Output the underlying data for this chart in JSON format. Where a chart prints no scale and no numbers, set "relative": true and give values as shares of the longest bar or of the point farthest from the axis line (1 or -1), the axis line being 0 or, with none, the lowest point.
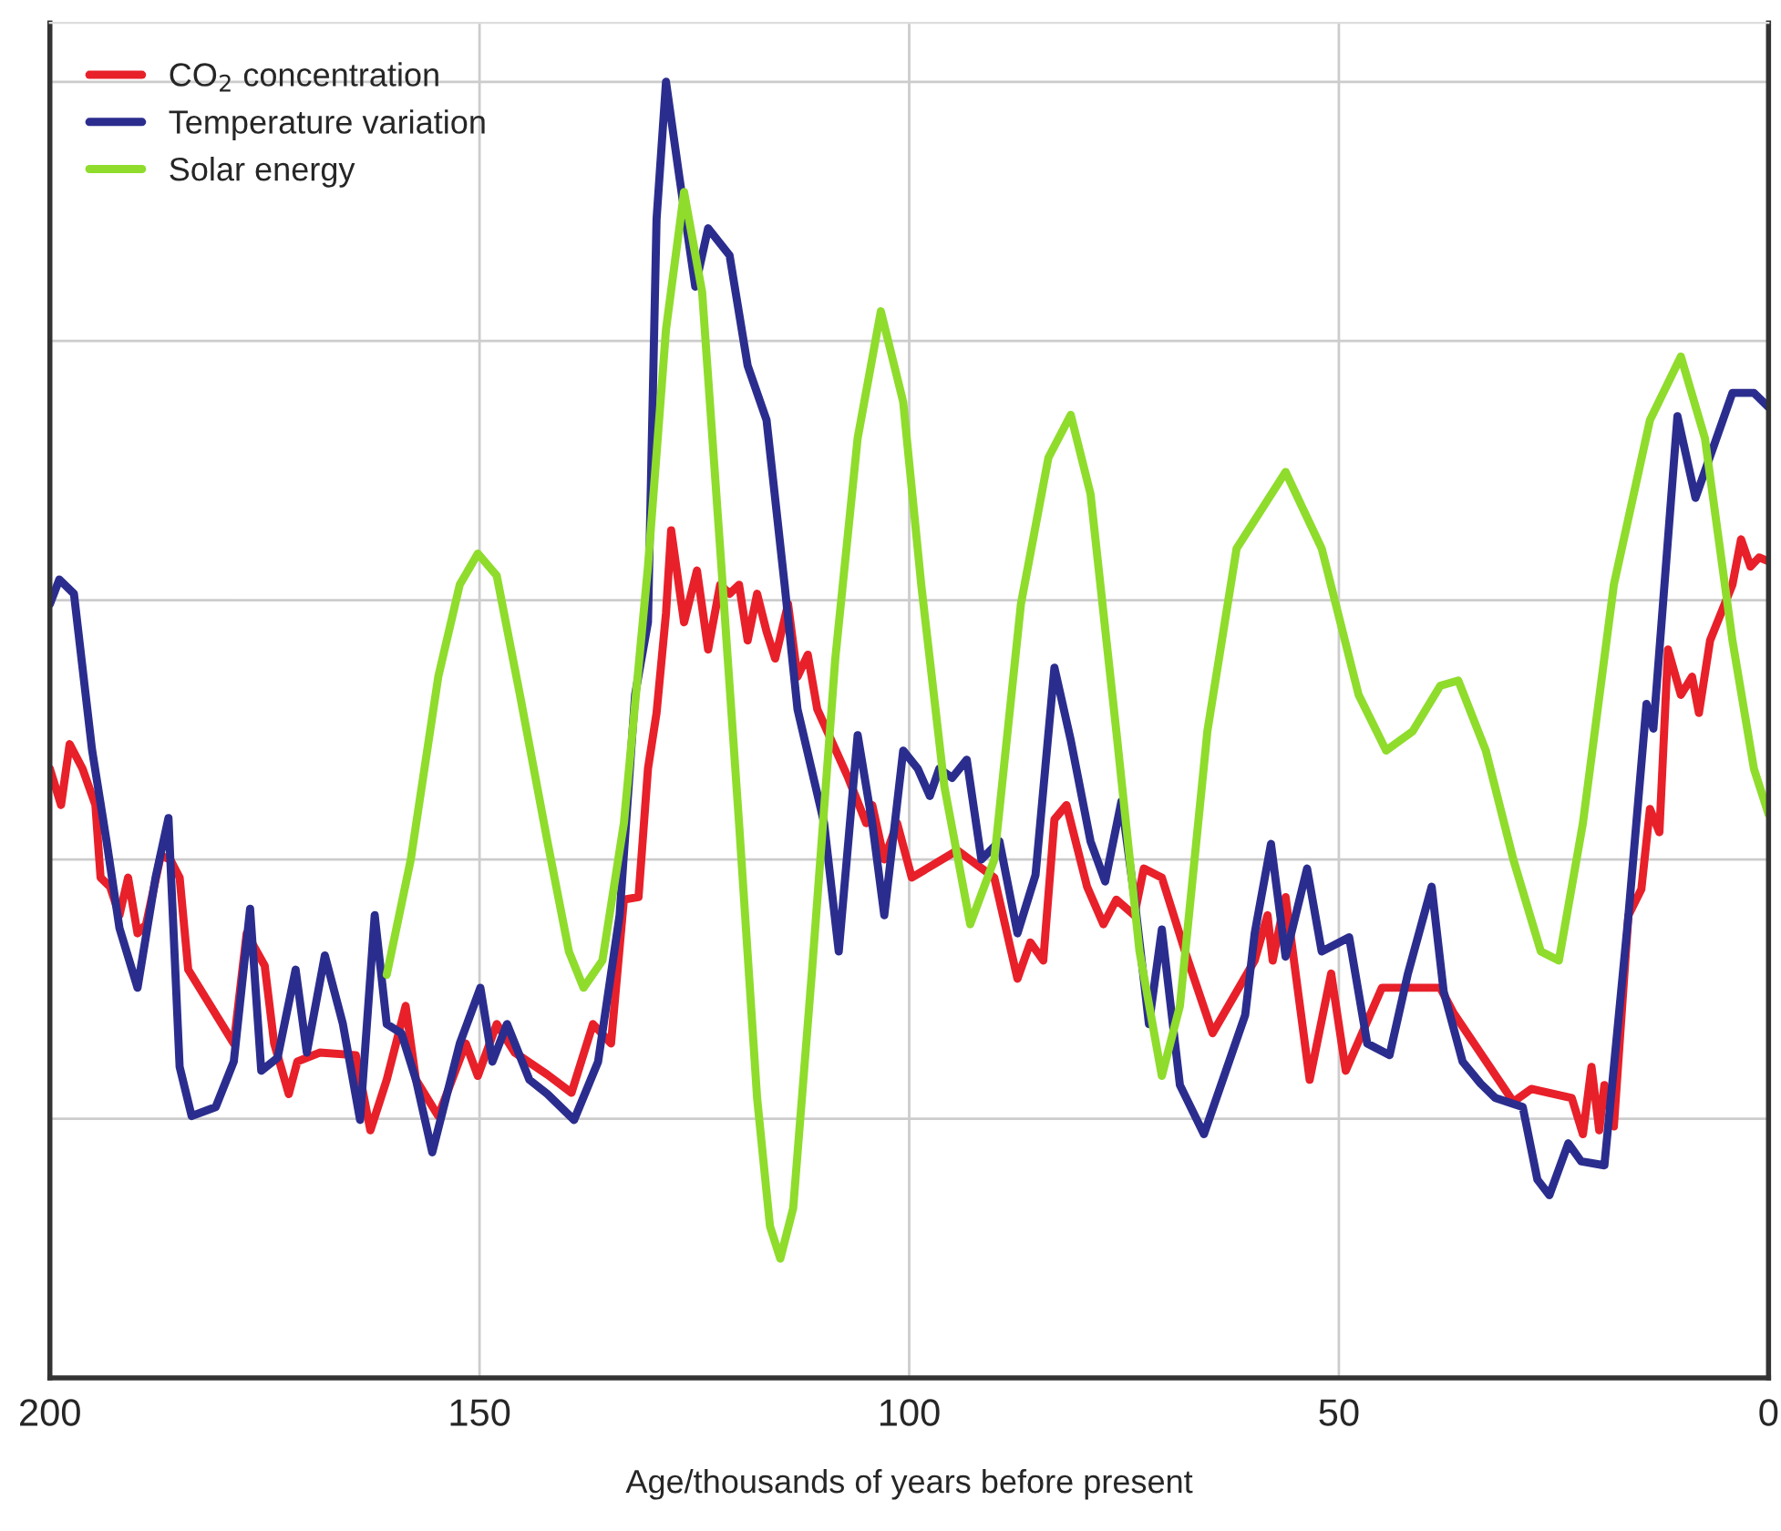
{
  "chart_data": {
    "type": "line",
    "relative": true,
    "xlabel": "Age/thousands of years before present",
    "xlim": [
      200,
      0
    ],
    "xticks": [
      200,
      150,
      100,
      50,
      0
    ],
    "grid": true,
    "legend": "top left",
    "line_style": "solid",
    "marker": "none",
    "series": [
      {
        "name": "CO$_{2}$ concentration",
        "color": "#e8202a",
        "x": [
          200,
          198.7,
          197.7,
          196.2,
          194.7,
          194.1,
          193.0,
          191.9,
          190.9,
          189.8,
          188.8,
          187.1,
          186.0,
          184.9,
          183.9,
          178.6,
          177.1,
          175.0,
          173.9,
          172.2,
          171.2,
          168.6,
          164.4,
          162.7,
          160.8,
          158.6,
          157.4,
          154.8,
          151.6,
          150.2,
          148.0,
          145.9,
          142.1,
          139.3,
          136.8,
          134.7,
          133.2,
          131.5,
          130.4,
          129.4,
          128.3,
          127.7,
          126.2,
          124.7,
          123.4,
          122.0,
          120.9,
          119.8,
          118.8,
          117.7,
          116.6,
          115.6,
          114.1,
          113.0,
          111.8,
          110.7,
          107.1,
          105.0,
          104.3,
          102.9,
          101.4,
          99.7,
          94.4,
          90.1,
          87.4,
          85.9,
          84.4,
          83.1,
          81.7,
          79.3,
          77.4,
          75.9,
          73.8,
          72.7,
          70.6,
          67.9,
          64.7,
          59.8,
          58.3,
          57.7,
          56.2,
          53.4,
          50.9,
          49.2,
          45.0,
          38.2,
          36.7,
          29.7,
          27.6,
          22.9,
          21.6,
          20.6,
          19.7,
          19.1,
          18.0,
          16.3,
          14.8,
          13.8,
          12.7,
          11.7,
          10.2,
          8.9,
          8.1,
          6.8,
          4.2,
          3.2,
          2.1,
          1.1,
          0
        ],
        "values": [
          0.47,
          0.442,
          0.489,
          0.47,
          0.442,
          0.386,
          0.379,
          0.357,
          0.386,
          0.343,
          0.35,
          0.403,
          0.4,
          0.386,
          0.315,
          0.258,
          0.343,
          0.318,
          0.258,
          0.219,
          0.244,
          0.251,
          0.249,
          0.191,
          0.23,
          0.287,
          0.23,
          0.202,
          0.258,
          0.233,
          0.273,
          0.251,
          0.234,
          0.22,
          0.273,
          0.258,
          0.369,
          0.371,
          0.47,
          0.513,
          0.59,
          0.654,
          0.583,
          0.623,
          0.562,
          0.612,
          0.605,
          0.612,
          0.569,
          0.605,
          0.576,
          0.555,
          0.597,
          0.541,
          0.558,
          0.516,
          0.463,
          0.428,
          0.442,
          0.4,
          0.428,
          0.386,
          0.407,
          0.386,
          0.308,
          0.336,
          0.322,
          0.431,
          0.442,
          0.379,
          0.35,
          0.369,
          0.357,
          0.393,
          0.386,
          0.329,
          0.266,
          0.322,
          0.357,
          0.322,
          0.371,
          0.23,
          0.312,
          0.237,
          0.301,
          0.301,
          0.282,
          0.213,
          0.223,
          0.216,
          0.188,
          0.24,
          0.191,
          0.226,
          0.194,
          0.357,
          0.377,
          0.439,
          0.421,
          0.562,
          0.527,
          0.541,
          0.513,
          0.569,
          0.612,
          0.647,
          0.626,
          0.633,
          0.63
        ]
      },
      {
        "name": "Temperature variation",
        "color": "#2b2d8e",
        "x": [
          200,
          198.9,
          197.2,
          195.1,
          193.4,
          191.9,
          189.8,
          187.7,
          186.2,
          184.9,
          183.5,
          180.7,
          178.6,
          176.7,
          175.4,
          173.5,
          171.4,
          170.1,
          168.0,
          165.9,
          163.9,
          162.2,
          160.8,
          159.1,
          157.4,
          155.5,
          152.3,
          149.9,
          148.5,
          146.8,
          144.2,
          142.1,
          139.0,
          136.2,
          133.7,
          131.9,
          130.4,
          129.4,
          128.3,
          126.8,
          124.9,
          123.4,
          120.9,
          118.8,
          116.6,
          114.5,
          113.0,
          109.9,
          108.2,
          106.0,
          104.3,
          102.9,
          100.7,
          99.0,
          97.6,
          96.5,
          95.0,
          93.3,
          91.6,
          89.5,
          87.4,
          85.3,
          83.1,
          81.2,
          78.9,
          77.2,
          75.3,
          73.8,
          72.1,
          70.6,
          68.5,
          65.7,
          60.9,
          59.8,
          57.9,
          56.2,
          53.7,
          52.0,
          48.8,
          46.7,
          44.1,
          42.0,
          39.2,
          37.8,
          35.6,
          33.5,
          31.8,
          28.6,
          26.9,
          25.5,
          23.3,
          21.8,
          19.1,
          16.3,
          14.2,
          13.4,
          10.6,
          8.5,
          4.2,
          1.7,
          0
        ],
        "values": [
          0.597,
          0.616,
          0.605,
          0.485,
          0.414,
          0.347,
          0.301,
          0.386,
          0.432,
          0.24,
          0.202,
          0.209,
          0.244,
          0.362,
          0.237,
          0.247,
          0.315,
          0.251,
          0.326,
          0.273,
          0.199,
          0.357,
          0.273,
          0.266,
          0.23,
          0.174,
          0.258,
          0.301,
          0.244,
          0.273,
          0.23,
          0.219,
          0.199,
          0.244,
          0.357,
          0.527,
          0.583,
          0.894,
          1.0,
          0.929,
          0.842,
          0.887,
          0.866,
          0.781,
          0.739,
          0.612,
          0.516,
          0.428,
          0.329,
          0.496,
          0.428,
          0.357,
          0.484,
          0.47,
          0.449,
          0.47,
          0.463,
          0.477,
          0.4,
          0.414,
          0.343,
          0.388,
          0.548,
          0.492,
          0.414,
          0.383,
          0.445,
          0.371,
          0.273,
          0.346,
          0.226,
          0.188,
          0.28,
          0.343,
          0.412,
          0.325,
          0.393,
          0.329,
          0.34,
          0.258,
          0.249,
          0.311,
          0.379,
          0.298,
          0.244,
          0.227,
          0.216,
          0.209,
          0.153,
          0.141,
          0.181,
          0.167,
          0.164,
          0.357,
          0.52,
          0.501,
          0.742,
          0.679,
          0.76,
          0.76,
          0.749
        ]
      },
      {
        "name": "Solar energy",
        "color": "#8fdc2c",
        "x": [
          160.8,
          158.0,
          154.8,
          152.3,
          150.2,
          148.0,
          145.3,
          142.1,
          139.6,
          137.9,
          135.7,
          133.2,
          130.4,
          128.3,
          126.2,
          124.1,
          122.0,
          119.8,
          117.7,
          116.2,
          115.0,
          113.5,
          111.3,
          108.6,
          106.0,
          103.3,
          100.7,
          98.6,
          95.9,
          92.9,
          90.1,
          87.0,
          83.8,
          81.2,
          78.9,
          75.9,
          73.2,
          70.6,
          68.5,
          65.3,
          61.9,
          56.2,
          52.0,
          47.7,
          44.5,
          41.4,
          38.2,
          36.1,
          32.9,
          29.7,
          26.5,
          24.4,
          21.6,
          18.0,
          13.8,
          10.2,
          7.4,
          4.2,
          1.7,
          0
        ],
        "values": [
          0.311,
          0.4,
          0.541,
          0.612,
          0.636,
          0.619,
          0.527,
          0.414,
          0.329,
          0.301,
          0.322,
          0.428,
          0.626,
          0.809,
          0.915,
          0.838,
          0.64,
          0.428,
          0.216,
          0.117,
          0.092,
          0.131,
          0.315,
          0.555,
          0.725,
          0.823,
          0.753,
          0.612,
          0.456,
          0.35,
          0.4,
          0.597,
          0.71,
          0.743,
          0.682,
          0.499,
          0.329,
          0.233,
          0.287,
          0.499,
          0.64,
          0.699,
          0.64,
          0.527,
          0.484,
          0.499,
          0.534,
          0.538,
          0.484,
          0.4,
          0.329,
          0.322,
          0.428,
          0.612,
          0.739,
          0.788,
          0.725,
          0.569,
          0.47,
          0.435
        ]
      }
    ]
  }
}
